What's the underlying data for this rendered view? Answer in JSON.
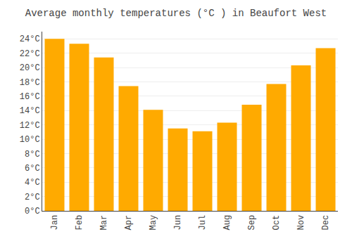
{
  "chart_data": {
    "type": "bar",
    "title": "Average monthly temperatures (°C ) in Beaufort West",
    "categories": [
      "Jan",
      "Feb",
      "Mar",
      "Apr",
      "May",
      "Jun",
      "Jul",
      "Aug",
      "Sep",
      "Oct",
      "Nov",
      "Dec"
    ],
    "values": [
      24.0,
      23.3,
      21.4,
      17.4,
      14.1,
      11.5,
      11.1,
      12.3,
      14.8,
      17.7,
      20.3,
      22.7
    ],
    "color": "#FFAA00",
    "ylim": [
      0,
      25
    ],
    "yticks": [
      {
        "value": 0,
        "label": "0°C"
      },
      {
        "value": 2,
        "label": "2°C"
      },
      {
        "value": 4,
        "label": "4°C"
      },
      {
        "value": 6,
        "label": "6°C"
      },
      {
        "value": 8,
        "label": "8°C"
      },
      {
        "value": 10,
        "label": "10°C"
      },
      {
        "value": 12,
        "label": "12°C"
      },
      {
        "value": 14,
        "label": "14°C"
      },
      {
        "value": 16,
        "label": "16°C"
      },
      {
        "value": 18,
        "label": "18°C"
      },
      {
        "value": 20,
        "label": "20°C"
      },
      {
        "value": 22,
        "label": "22°C"
      },
      {
        "value": 24,
        "label": "24°C"
      }
    ],
    "grid": true
  }
}
